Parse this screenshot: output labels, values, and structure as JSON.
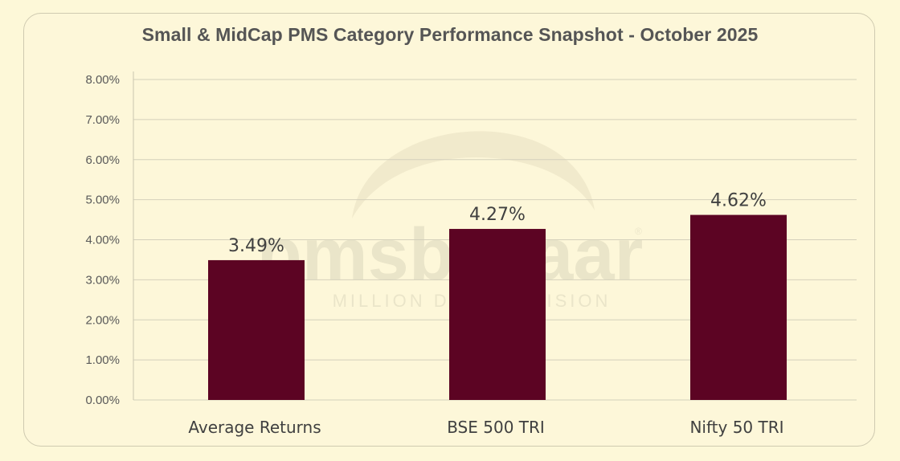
{
  "chart_data": {
    "type": "bar",
    "title": "Small & MidCap PMS Category Performance Snapshot - October 2025",
    "categories": [
      "Average Returns",
      "BSE 500 TRI",
      "Nifty 50 TRI"
    ],
    "values": [
      3.49,
      4.27,
      4.62
    ],
    "data_labels": [
      "3.49%",
      "4.27%",
      "4.62%"
    ],
    "ylim": [
      0,
      8
    ],
    "yticks": [
      "0.00%",
      "1.00%",
      "2.00%",
      "3.00%",
      "4.00%",
      "5.00%",
      "6.00%",
      "7.00%",
      "8.00%"
    ],
    "xlabel": "",
    "ylabel": "",
    "grid": true,
    "legend": "none",
    "bar_color": "#5c0423",
    "background_color": "#fdf8d8"
  },
  "watermark": {
    "brand": "pmsbazaar",
    "tagline": "MILLION DOLLAR VISION",
    "registered_mark": "®"
  }
}
